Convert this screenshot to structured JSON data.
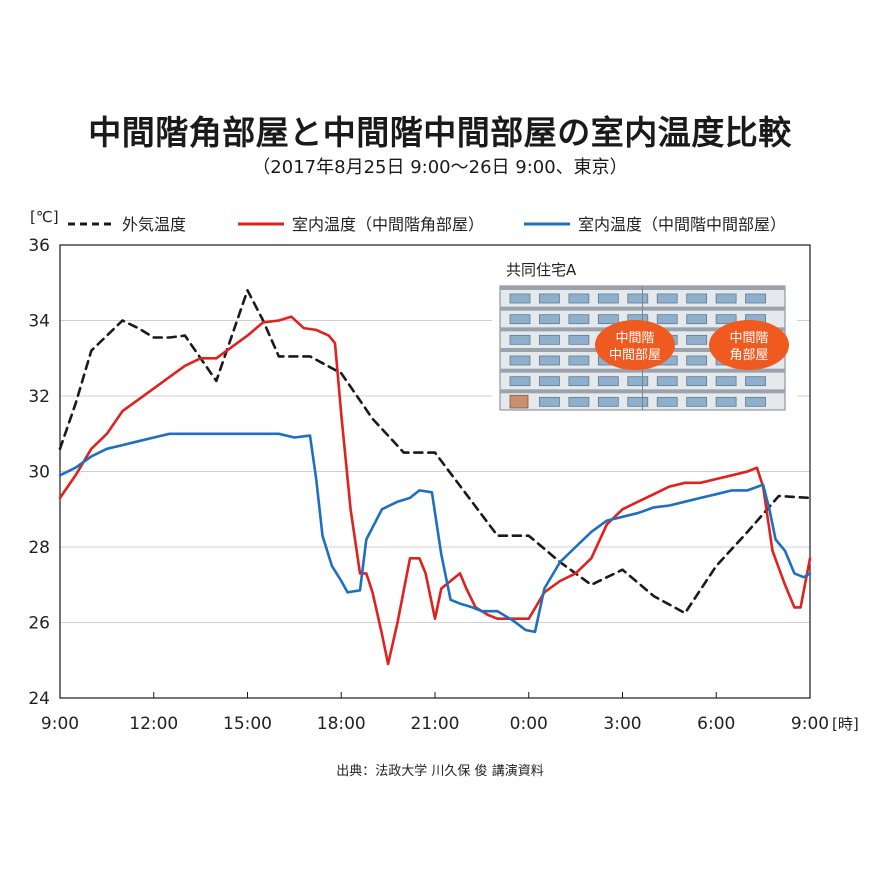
{
  "title": "中間階角部屋と中間階中間部屋の室内温度比較",
  "subtitle": "（2017年8月25日 9:00〜26日 9:00、東京）",
  "source": "出典：法政大学 川久保 俊 講演資料",
  "chart_data": {
    "type": "line",
    "y_unit": "[℃]",
    "x_unit": "[時]",
    "ylim": [
      24,
      36
    ],
    "yticks": [
      "24",
      "26",
      "28",
      "30",
      "32",
      "34",
      "36"
    ],
    "xlim": [
      0,
      24
    ],
    "xticks": [
      "9:00",
      "12:00",
      "15:00",
      "18:00",
      "21:00",
      "0:00",
      "3:00",
      "6:00",
      "9:00"
    ],
    "grid": true,
    "legend_position": "top",
    "series": [
      {
        "name": "外気温度",
        "color": "#1a1a1a",
        "style": "dashed",
        "points": [
          [
            0,
            30.6
          ],
          [
            0.5,
            31.8
          ],
          [
            1,
            33.2
          ],
          [
            1.5,
            33.6
          ],
          [
            2,
            34.0
          ],
          [
            2.5,
            33.8
          ],
          [
            3,
            33.55
          ],
          [
            3.5,
            33.55
          ],
          [
            4,
            33.6
          ],
          [
            4.5,
            33.0
          ],
          [
            5,
            32.4
          ],
          [
            5.5,
            33.6
          ],
          [
            6,
            34.8
          ],
          [
            6.5,
            34.0
          ],
          [
            7,
            33.05
          ],
          [
            8,
            33.05
          ],
          [
            9,
            32.6
          ],
          [
            10,
            31.4
          ],
          [
            11,
            30.5
          ],
          [
            12,
            30.5
          ],
          [
            13,
            29.4
          ],
          [
            14,
            28.3
          ],
          [
            15,
            28.3
          ],
          [
            16,
            27.6
          ],
          [
            17,
            27.0
          ],
          [
            18,
            27.4
          ],
          [
            19,
            26.7
          ],
          [
            20,
            26.25
          ],
          [
            21,
            27.5
          ],
          [
            22,
            28.4
          ],
          [
            23,
            29.35
          ],
          [
            24,
            29.3
          ]
        ]
      },
      {
        "name": "室内温度（中間階角部屋）",
        "color": "#e0211f",
        "style": "solid",
        "points": [
          [
            0,
            29.3
          ],
          [
            0.5,
            29.9
          ],
          [
            1,
            30.6
          ],
          [
            1.5,
            31.0
          ],
          [
            2,
            31.6
          ],
          [
            2.5,
            31.9
          ],
          [
            3,
            32.2
          ],
          [
            3.5,
            32.5
          ],
          [
            4,
            32.8
          ],
          [
            4.5,
            33.0
          ],
          [
            5,
            33.0
          ],
          [
            5.5,
            33.3
          ],
          [
            6,
            33.6
          ],
          [
            6.5,
            33.95
          ],
          [
            7,
            34.0
          ],
          [
            7.4,
            34.1
          ],
          [
            7.8,
            33.8
          ],
          [
            8.2,
            33.75
          ],
          [
            8.6,
            33.6
          ],
          [
            8.8,
            33.4
          ],
          [
            9,
            31.5
          ],
          [
            9.3,
            29.0
          ],
          [
            9.6,
            27.3
          ],
          [
            9.8,
            27.3
          ],
          [
            10.0,
            26.8
          ],
          [
            10.3,
            25.7
          ],
          [
            10.5,
            24.9
          ],
          [
            10.8,
            26.0
          ],
          [
            11.2,
            27.7
          ],
          [
            11.5,
            27.7
          ],
          [
            11.7,
            27.3
          ],
          [
            12,
            26.1
          ],
          [
            12.2,
            26.9
          ],
          [
            12.5,
            27.1
          ],
          [
            12.8,
            27.3
          ],
          [
            13,
            26.9
          ],
          [
            13.3,
            26.4
          ],
          [
            13.7,
            26.2
          ],
          [
            14,
            26.1
          ],
          [
            14.5,
            26.1
          ],
          [
            15,
            26.1
          ],
          [
            15.5,
            26.8
          ],
          [
            16,
            27.1
          ],
          [
            16.5,
            27.3
          ],
          [
            17,
            27.7
          ],
          [
            17.5,
            28.6
          ],
          [
            18,
            29.0
          ],
          [
            18.5,
            29.2
          ],
          [
            19,
            29.4
          ],
          [
            19.5,
            29.6
          ],
          [
            20,
            29.7
          ],
          [
            20.5,
            29.7
          ],
          [
            21,
            29.8
          ],
          [
            21.5,
            29.9
          ],
          [
            22,
            30.0
          ],
          [
            22.3,
            30.1
          ],
          [
            22.5,
            29.6
          ],
          [
            22.8,
            27.9
          ],
          [
            23.2,
            27.0
          ],
          [
            23.5,
            26.4
          ],
          [
            23.7,
            26.4
          ],
          [
            24,
            27.7
          ]
        ]
      },
      {
        "name": "室内温度（中間階中間部屋）",
        "color": "#1f6fc0",
        "style": "solid",
        "points": [
          [
            0,
            29.9
          ],
          [
            0.5,
            30.1
          ],
          [
            1,
            30.4
          ],
          [
            1.5,
            30.6
          ],
          [
            2,
            30.7
          ],
          [
            2.5,
            30.8
          ],
          [
            3,
            30.9
          ],
          [
            3.5,
            31.0
          ],
          [
            4,
            31.0
          ],
          [
            5,
            31.0
          ],
          [
            6,
            31.0
          ],
          [
            7,
            31.0
          ],
          [
            7.5,
            30.9
          ],
          [
            8,
            30.95
          ],
          [
            8.2,
            29.8
          ],
          [
            8.4,
            28.3
          ],
          [
            8.7,
            27.5
          ],
          [
            9,
            27.1
          ],
          [
            9.2,
            26.8
          ],
          [
            9.6,
            26.85
          ],
          [
            9.8,
            28.2
          ],
          [
            10.3,
            29.0
          ],
          [
            10.8,
            29.2
          ],
          [
            11.2,
            29.3
          ],
          [
            11.5,
            29.5
          ],
          [
            11.9,
            29.45
          ],
          [
            12.2,
            27.8
          ],
          [
            12.5,
            26.6
          ],
          [
            12.8,
            26.5
          ],
          [
            13.2,
            26.4
          ],
          [
            13.5,
            26.3
          ],
          [
            14,
            26.3
          ],
          [
            14.5,
            26.05
          ],
          [
            14.9,
            25.8
          ],
          [
            15.2,
            25.75
          ],
          [
            15.5,
            26.9
          ],
          [
            16,
            27.6
          ],
          [
            16.5,
            28.0
          ],
          [
            17,
            28.4
          ],
          [
            17.5,
            28.7
          ],
          [
            18,
            28.8
          ],
          [
            18.5,
            28.9
          ],
          [
            19,
            29.05
          ],
          [
            19.5,
            29.1
          ],
          [
            20,
            29.2
          ],
          [
            20.5,
            29.3
          ],
          [
            21,
            29.4
          ],
          [
            21.5,
            29.5
          ],
          [
            22,
            29.5
          ],
          [
            22.5,
            29.65
          ],
          [
            22.7,
            29.0
          ],
          [
            22.9,
            28.2
          ],
          [
            23.2,
            27.9
          ],
          [
            23.5,
            27.3
          ],
          [
            23.8,
            27.2
          ],
          [
            24,
            27.3
          ]
        ]
      }
    ]
  },
  "inset": {
    "label": "共同住宅A",
    "middle_room": "中間階\n中間部屋",
    "corner_room": "中間階\n角部屋",
    "badge_color": "#ee5a20",
    "building_color": "#9aa3ad"
  }
}
